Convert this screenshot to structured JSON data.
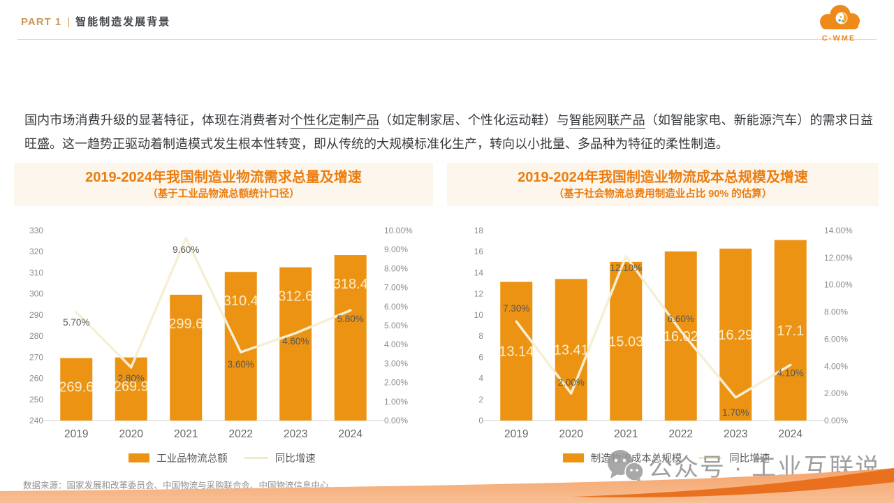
{
  "header": {
    "part_label": "PART 1",
    "separator": "|",
    "section_title": "智能制造发展背景",
    "logo_text": "C-WME"
  },
  "intro": {
    "segments": [
      {
        "text": "国内市场消费升级的显著特征，体现在消费者对",
        "underline": false
      },
      {
        "text": "个性化定制产品",
        "underline": true
      },
      {
        "text": "（如定制家居、个性化运动鞋）与",
        "underline": false
      },
      {
        "text": "智能网联产品",
        "underline": true
      },
      {
        "text": "（如智能家电、新能源汽车）的需求日益旺盛。这一趋势正驱动着制造模式发生根本性转变，即从传统的大规模标准化生产，转向以小批量、多品种为特征的柔性制造。",
        "underline": false
      }
    ]
  },
  "chart_data": [
    {
      "type": "bar",
      "title": "2019-2024年我国制造业物流需求总量及增速",
      "subtitle": "（基于工业品物流总额统计口径）",
      "categories": [
        "2019",
        "2020",
        "2021",
        "2022",
        "2023",
        "2024"
      ],
      "series": [
        {
          "name": "工业品物流总额",
          "type": "bar",
          "axis": "left",
          "values": [
            269.6,
            269.9,
            299.6,
            310.4,
            312.6,
            318.4
          ]
        },
        {
          "name": "同比增速",
          "type": "line",
          "axis": "right",
          "values": [
            5.7,
            2.8,
            9.6,
            3.6,
            4.6,
            5.8
          ],
          "labels": [
            "5.70%",
            "2.80%",
            "9.60%",
            "3.60%",
            "4.60%",
            "5.80%"
          ]
        }
      ],
      "left_axis": {
        "min": 240,
        "max": 330,
        "step": 10
      },
      "right_axis": {
        "min": 0,
        "max": 10,
        "step": 1,
        "format": "percent"
      },
      "grid": false,
      "legend_position": "bottom",
      "layout": {
        "value_label_mode": "near_top",
        "pct_label_dy": [
          19,
          20,
          21,
          22,
          16,
          17
        ]
      }
    },
    {
      "type": "bar",
      "title": "2019-2024年我国制造业物流成本总规模及增速",
      "subtitle": "（基于社会物流总费用制造业占比 90% 的估算）",
      "categories": [
        "2019",
        "2020",
        "2021",
        "2022",
        "2023",
        "2024"
      ],
      "series": [
        {
          "name": "制造物流成本总规模",
          "type": "bar",
          "axis": "left",
          "values": [
            13.14,
            13.41,
            15.03,
            16.02,
            16.29,
            17.1
          ]
        },
        {
          "name": "同比增速",
          "type": "line",
          "axis": "right",
          "values": [
            7.3,
            2.0,
            12.1,
            6.6,
            1.7,
            4.1
          ],
          "labels": [
            "7.30%",
            "2.00%",
            "12.10%",
            "6.60%",
            "1.70%",
            "4.10%"
          ]
        }
      ],
      "left_axis": {
        "min": 0,
        "max": 18,
        "step": 2
      },
      "right_axis": {
        "min": 0,
        "max": 14,
        "step": 2,
        "format": "percent"
      },
      "grid": false,
      "legend_position": "bottom",
      "layout": {
        "value_label_mode": "middle",
        "pct_label_dy": [
          -14,
          -11,
          21,
          -13,
          26,
          16
        ]
      }
    }
  ],
  "source": "数据来源：国家发展和改革委员会、中国物流与采购联合会、中国物流信息中心",
  "watermark": "公众号 · 工业互联说",
  "colors": {
    "bar_orange": "#EC9313",
    "title_orange": "#EB7D10",
    "banner_bg": "#FDF6EC",
    "growth_line": "#F6EFD4",
    "part_label": "#C79A5B",
    "body_text": "#36393D",
    "footer_band_light": "#F6A76F",
    "footer_band_dark": "#E8701E",
    "watermark_gray": "#8F8F8F"
  }
}
